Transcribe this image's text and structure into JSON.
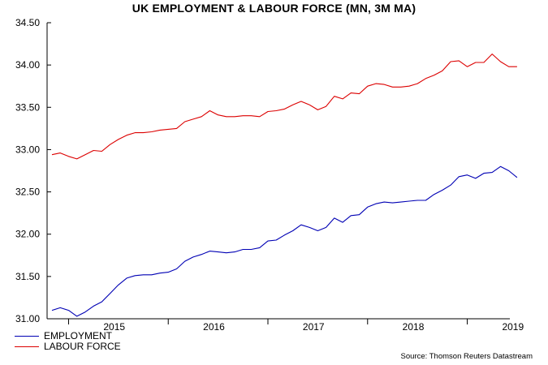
{
  "chart_data": {
    "type": "line",
    "title": "UK EMPLOYMENT & LABOUR FORCE (MN, 3M MA)",
    "xlabel": "",
    "ylabel": "",
    "x_start": "2014-11",
    "x_end": "2019-03",
    "x_axis_years": [
      "2015",
      "2016",
      "2017",
      "2018",
      "2019"
    ],
    "ylim": [
      31.0,
      34.5
    ],
    "y_ticks": [
      "31.00",
      "31.50",
      "32.00",
      "32.50",
      "33.00",
      "33.50",
      "34.00",
      "34.50"
    ],
    "grid": false,
    "legend_position": "bottom-left",
    "series": [
      {
        "name": "EMPLOYMENT",
        "color": "#0000b4",
        "values": [
          31.1,
          31.13,
          31.1,
          31.03,
          31.08,
          31.15,
          31.2,
          31.3,
          31.4,
          31.48,
          31.51,
          31.52,
          31.52,
          31.54,
          31.55,
          31.59,
          31.68,
          31.73,
          31.76,
          31.8,
          31.79,
          31.78,
          31.79,
          31.82,
          31.82,
          31.84,
          31.92,
          31.93,
          31.99,
          32.04,
          32.11,
          32.08,
          32.04,
          32.08,
          32.19,
          32.14,
          32.22,
          32.23,
          32.32,
          32.36,
          32.38,
          32.37,
          32.38,
          32.39,
          32.4,
          32.4,
          32.47,
          32.52,
          32.58,
          32.68,
          32.7,
          32.66,
          32.72,
          32.73,
          32.8,
          32.75,
          32.67
        ]
      },
      {
        "name": "LABOUR FORCE",
        "color": "#dc0000",
        "values": [
          32.94,
          32.96,
          32.92,
          32.89,
          32.94,
          32.99,
          32.98,
          33.06,
          33.12,
          33.17,
          33.2,
          33.2,
          33.21,
          33.23,
          33.24,
          33.25,
          33.33,
          33.36,
          33.39,
          33.46,
          33.41,
          33.39,
          33.39,
          33.4,
          33.4,
          33.39,
          33.45,
          33.46,
          33.48,
          33.53,
          33.57,
          33.53,
          33.47,
          33.51,
          33.63,
          33.6,
          33.67,
          33.66,
          33.75,
          33.78,
          33.77,
          33.74,
          33.74,
          33.75,
          33.78,
          33.84,
          33.88,
          33.93,
          34.04,
          34.05,
          33.98,
          34.03,
          34.03,
          34.13,
          34.04,
          33.98,
          33.98
        ]
      }
    ]
  },
  "source_text": "Source: Thomson Reuters Datastream"
}
